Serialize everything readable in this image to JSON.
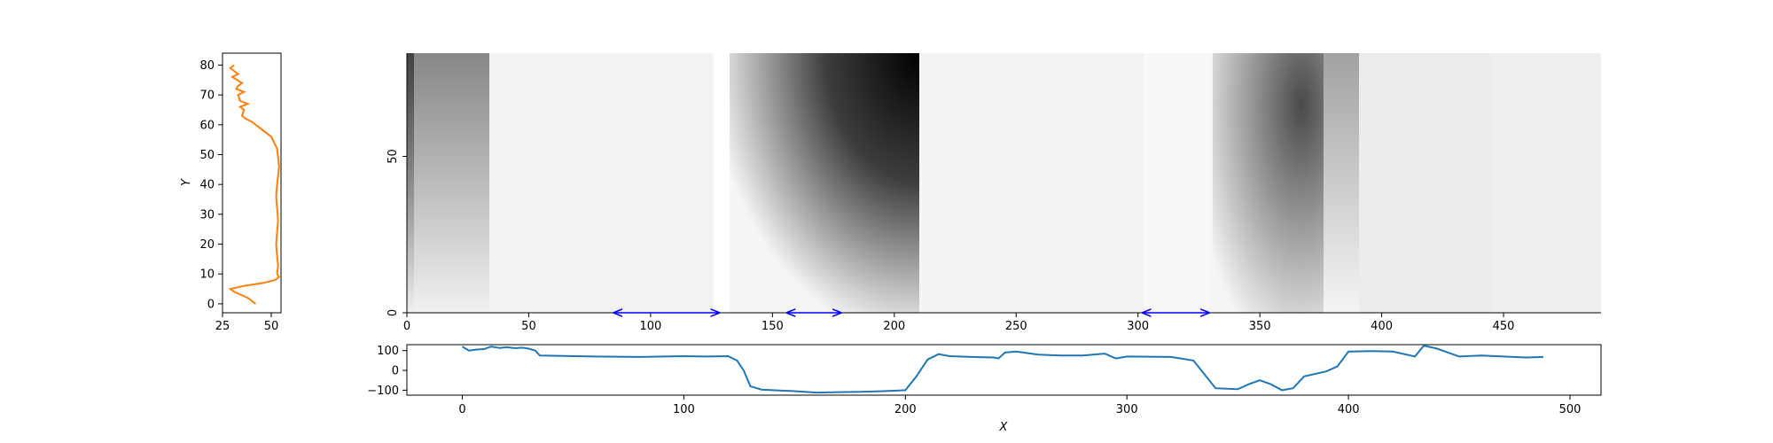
{
  "colors": {
    "profile_y": "#ff7f0e",
    "profile_x": "#1f77b4",
    "arrows": "#0000ff",
    "heatmap_dark": "#000000",
    "heatmap_light": "#ffffff"
  },
  "chart_data": [
    {
      "id": "side-profile",
      "type": "line",
      "title": "",
      "ylabel": "Y",
      "xlabel": "",
      "xlim": [
        25,
        55
      ],
      "ylim": [
        -3,
        84
      ],
      "xticks": [
        "25",
        "50"
      ],
      "yticks": [
        "0",
        "10",
        "20",
        "30",
        "40",
        "50",
        "60",
        "70",
        "80"
      ],
      "series": [
        {
          "x": [
            42,
            38,
            31,
            29,
            36,
            46,
            52,
            54,
            53,
            53.5,
            53,
            52.5,
            53,
            53.5,
            53,
            52.5,
            53,
            54,
            53,
            50,
            44,
            40,
            37,
            35,
            36,
            34,
            38,
            34,
            33,
            36,
            32,
            33,
            35,
            30,
            33,
            29,
            31
          ],
          "y": [
            0,
            2,
            4,
            5,
            6,
            7,
            8,
            9,
            10,
            13,
            16,
            20,
            24,
            28,
            32,
            36,
            40,
            46,
            52,
            56,
            59,
            61,
            62,
            63,
            65,
            66,
            67,
            68,
            70,
            71,
            72,
            73,
            74,
            76,
            77,
            79,
            80
          ]
        }
      ]
    },
    {
      "id": "main-heatmap",
      "type": "heatmap",
      "title": "",
      "xlim": [
        0,
        490
      ],
      "ylim": [
        0,
        83
      ],
      "xticks": [
        "0",
        "50",
        "100",
        "150",
        "200",
        "250",
        "300",
        "350",
        "400",
        "450"
      ],
      "yticks": [
        "0",
        "50"
      ],
      "arrows": [
        {
          "from": 85,
          "to": 128
        },
        {
          "from": 156,
          "to": 178
        },
        {
          "from": 302,
          "to": 329
        }
      ]
    },
    {
      "id": "bottom-profile",
      "type": "line",
      "title": "",
      "xlabel": "X",
      "ylabel": "",
      "xlim": [
        -25,
        514
      ],
      "ylim": [
        -125,
        130
      ],
      "xticks": [
        "0",
        "100",
        "200",
        "300",
        "400",
        "500"
      ],
      "yticks": [
        "100",
        "0",
        "−100"
      ],
      "series": [
        {
          "x": [
            0,
            3,
            6,
            10,
            13,
            17,
            20,
            24,
            27,
            30,
            33,
            35,
            60,
            80,
            100,
            110,
            120,
            124,
            127,
            130,
            135,
            140,
            150,
            160,
            170,
            180,
            190,
            200,
            205,
            210,
            215,
            220,
            230,
            240,
            242,
            245,
            250,
            260,
            270,
            280,
            290,
            295,
            300,
            320,
            330,
            335,
            340,
            350,
            355,
            360,
            365,
            370,
            375,
            380,
            390,
            395,
            400,
            410,
            420,
            430,
            434,
            440,
            450,
            460,
            470,
            480,
            488
          ],
          "y": [
            120,
            100,
            105,
            108,
            120,
            113,
            117,
            112,
            115,
            110,
            100,
            75,
            70,
            68,
            72,
            70,
            72,
            50,
            0,
            -80,
            -97,
            -100,
            -105,
            -112,
            -110,
            -108,
            -105,
            -100,
            -30,
            55,
            82,
            72,
            68,
            65,
            60,
            90,
            95,
            80,
            75,
            75,
            85,
            60,
            70,
            68,
            50,
            -20,
            -90,
            -95,
            -70,
            -50,
            -70,
            -100,
            -90,
            -30,
            -5,
            20,
            95,
            98,
            95,
            70,
            125,
            110,
            70,
            75,
            70,
            65,
            68
          ]
        }
      ]
    }
  ]
}
